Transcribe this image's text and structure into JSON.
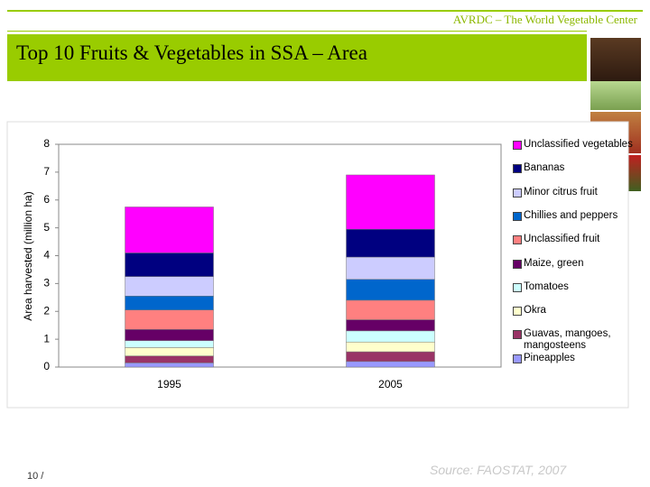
{
  "header": "AVRDC – The World Vegetable Center",
  "title": "Top 10 Fruits & Vegetables in SSA – Area",
  "chart_data": {
    "type": "bar",
    "stacked": true,
    "y_label": "Area harvested (million ha)",
    "categories": [
      "1995",
      "2005"
    ],
    "series": [
      {
        "name": "Pineapples",
        "color": "#9999ff",
        "values": [
          0.15,
          0.2
        ]
      },
      {
        "name": "Guavas, mangoes, mangosteens",
        "color": "#993366",
        "values": [
          0.25,
          0.35
        ]
      },
      {
        "name": "Okra",
        "color": "#ffffcc",
        "values": [
          0.3,
          0.35
        ]
      },
      {
        "name": "Tomatoes",
        "color": "#ccffff",
        "values": [
          0.25,
          0.4
        ]
      },
      {
        "name": "Maize, green",
        "color": "#660066",
        "values": [
          0.4,
          0.4
        ]
      },
      {
        "name": "Unclassified fruit",
        "color": "#ff8080",
        "values": [
          0.7,
          0.7
        ]
      },
      {
        "name": "Chillies and peppers",
        "color": "#0066cc",
        "values": [
          0.5,
          0.75
        ]
      },
      {
        "name": "Minor citrus fruit",
        "color": "#ccccff",
        "values": [
          0.7,
          0.8
        ]
      },
      {
        "name": "Bananas",
        "color": "#000080",
        "values": [
          0.85,
          1.0
        ]
      },
      {
        "name": "Unclassified vegetables",
        "color": "#ff00ff",
        "values": [
          1.65,
          1.95
        ]
      }
    ],
    "ylim": [
      0,
      8
    ],
    "yticks": [
      0,
      1,
      2,
      3,
      4,
      5,
      6,
      7,
      8
    ],
    "grid": false,
    "legend": "right"
  },
  "footer": {
    "page": "10 /",
    "source": "Source: FAOSTAT, 2007"
  }
}
